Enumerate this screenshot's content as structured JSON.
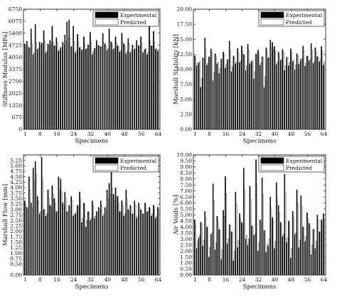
{
  "chart_data": [
    {
      "type": "bar",
      "xlabel": "Specimens",
      "ylabel": "Stiffness Modulus [MPa]",
      "ylim": [
        0,
        6750
      ],
      "yticks": [
        "0",
        "675",
        "1350",
        "2025",
        "2700",
        "3375",
        "4050",
        "4725",
        "5400",
        "6075",
        "6750"
      ],
      "xticks": [
        "1",
        "8",
        "16",
        "24",
        "32",
        "40",
        "48",
        "56",
        "64"
      ],
      "legend_placement": "top-right",
      "series": [
        {
          "name": "Experimental",
          "color": "#000000",
          "values": [
            4800,
            4950,
            4600,
            5650,
            4200,
            5900,
            4500,
            4900,
            4850,
            5550,
            4300,
            4800,
            5000,
            5800,
            4700,
            5150,
            4400,
            4600,
            4900,
            5300,
            6050,
            6150,
            4650,
            5800,
            4300,
            5350,
            4600,
            4450,
            5200,
            4500,
            4750,
            5450,
            4200,
            4550,
            5000,
            4700,
            4650,
            5400,
            4800,
            4450,
            5650,
            4900,
            4500,
            5200,
            4700,
            4350,
            5400,
            4800,
            4250,
            5100,
            4300,
            4750,
            4500,
            5000,
            4700,
            5200,
            4300,
            4500,
            4200,
            6200,
            4700,
            5500,
            4500,
            4400
          ]
        },
        {
          "name": "Predicted",
          "color": "#ffffff",
          "values": [
            4600,
            4700,
            4550,
            4800,
            4300,
            4900,
            4550,
            4700,
            4800,
            4950,
            4400,
            4700,
            4800,
            4900,
            4650,
            4900,
            4450,
            4600,
            4750,
            4950,
            5100,
            5200,
            4600,
            4950,
            4400,
            4900,
            4600,
            4500,
            4800,
            4550,
            4700,
            4900,
            4350,
            4550,
            4750,
            4650,
            4600,
            4850,
            4700,
            4550,
            4950,
            4750,
            4550,
            4850,
            4650,
            4450,
            4900,
            4700,
            4400,
            4800,
            4400,
            4650,
            4550,
            4750,
            4650,
            4850,
            4400,
            4550,
            4350,
            5000,
            4650,
            4900,
            4550,
            4500
          ]
        }
      ]
    },
    {
      "type": "bar",
      "xlabel": "Specimens",
      "ylabel": "Marshall Stability [kN]",
      "ylim": [
        0,
        20
      ],
      "yticks": [
        "0.00",
        "2.50",
        "5.00",
        "7.50",
        "10.00",
        "12.50",
        "15.00",
        "17.50",
        "20.00"
      ],
      "xticks": [
        "1",
        "8",
        "16",
        "24",
        "32",
        "40",
        "48",
        "56",
        "64"
      ],
      "legend_placement": "top-right",
      "series": [
        {
          "name": "Experimental",
          "color": "#000000",
          "values": [
            12.3,
            10.6,
            11.1,
            7.0,
            11.9,
            15.2,
            10.7,
            12.1,
            13.4,
            8.1,
            12.6,
            10.9,
            9.3,
            11.7,
            12.9,
            10.2,
            11.6,
            14.7,
            9.6,
            12.2,
            10.9,
            13.5,
            11.1,
            13.9,
            12.5,
            9.8,
            14.2,
            10.9,
            11.3,
            8.4,
            12.6,
            13.2,
            10.7,
            12.1,
            7.0,
            13.6,
            11.9,
            14.9,
            14.5,
            13.8,
            10.8,
            12.9,
            11.5,
            13.3,
            9.8,
            12.0,
            10.6,
            13.4,
            11.3,
            9.9,
            12.6,
            10.8,
            11.7,
            13.9,
            10.5,
            12.2,
            11.4,
            14.3,
            11.0,
            13.6,
            12.1,
            11.2,
            13.8,
            10.7
          ]
        },
        {
          "name": "Predicted",
          "color": "#ffffff",
          "values": [
            12.0,
            11.0,
            11.3,
            8.5,
            11.8,
            13.5,
            11.0,
            12.0,
            12.8,
            9.5,
            12.2,
            11.2,
            10.2,
            11.7,
            12.5,
            10.8,
            11.6,
            13.2,
            10.4,
            12.0,
            11.2,
            12.8,
            11.4,
            13.0,
            12.2,
            10.6,
            13.1,
            11.3,
            11.5,
            9.6,
            12.3,
            12.7,
            11.1,
            12.0,
            8.8,
            12.9,
            11.8,
            13.5,
            13.3,
            13.0,
            11.2,
            12.5,
            11.6,
            12.8,
            10.6,
            12.0,
            11.1,
            12.8,
            11.5,
            10.7,
            12.3,
            11.2,
            11.8,
            13.0,
            11.0,
            12.1,
            11.6,
            13.2,
            11.3,
            12.9,
            12.0,
            11.5,
            13.0,
            11.2
          ]
        }
      ]
    },
    {
      "type": "bar",
      "xlabel": "Specimens",
      "ylabel": "Marshall Flow [mm]",
      "ylim": [
        0,
        5.5
      ],
      "yticks": [
        "0.00",
        "0.50",
        "0.75",
        "1.00",
        "1.25",
        "1.50",
        "1.75",
        "2.00",
        "2.25",
        "2.50",
        "2.75",
        "3.00",
        "3.25",
        "3.50",
        "3.75",
        "4.00",
        "4.25",
        "4.50",
        "4.75",
        "5.00",
        "5.25"
      ],
      "xticks": [
        "1",
        "8",
        "16",
        "24",
        "32",
        "40",
        "48",
        "56",
        "64"
      ],
      "legend_placement": "top-right",
      "series": [
        {
          "name": "Experimental",
          "color": "#000000",
          "values": [
            3.4,
            3.1,
            4.5,
            3.3,
            4.9,
            5.2,
            3.6,
            2.8,
            5.4,
            3.0,
            2.7,
            3.9,
            3.2,
            4.1,
            3.5,
            2.9,
            4.5,
            4.4,
            3.3,
            3.8,
            2.9,
            3.2,
            3.6,
            2.7,
            2.8,
            3.2,
            3.8,
            2.4,
            3.3,
            2.2,
            2.9,
            2.5,
            3.4,
            2.6,
            2.9,
            3.1,
            3.4,
            2.7,
            3.1,
            3.9,
            4.2,
            4.7,
            3.7,
            4.0,
            3.6,
            2.9,
            3.4,
            2.7,
            3.9,
            3.0,
            3.2,
            2.8,
            3.4,
            2.6,
            3.3,
            3.0,
            2.8,
            3.3,
            2.9,
            3.1,
            2.7,
            3.2,
            2.6,
            3.1
          ]
        },
        {
          "name": "Predicted",
          "color": "#ffffff",
          "values": [
            3.2,
            3.0,
            3.9,
            3.1,
            4.3,
            4.6,
            3.4,
            2.9,
            4.4,
            3.0,
            2.8,
            3.5,
            3.1,
            3.7,
            3.3,
            2.9,
            3.9,
            3.8,
            3.2,
            3.5,
            2.9,
            3.1,
            3.4,
            2.8,
            2.9,
            3.1,
            3.5,
            2.6,
            3.2,
            2.5,
            2.9,
            2.6,
            3.2,
            2.7,
            2.9,
            3.0,
            3.2,
            2.8,
            3.0,
            3.5,
            3.7,
            4.0,
            3.4,
            3.6,
            3.3,
            2.9,
            3.2,
            2.8,
            3.5,
            2.9,
            3.1,
            2.8,
            3.2,
            2.7,
            3.1,
            2.9,
            2.8,
            3.1,
            2.9,
            3.0,
            2.8,
            3.1,
            2.7,
            3.0
          ]
        }
      ]
    },
    {
      "type": "bar",
      "xlabel": "Specimens",
      "ylabel": "Air Voids [%]",
      "ylim": [
        0,
        10
      ],
      "yticks": [
        "0.00",
        "0.50",
        "1.00",
        "1.50",
        "2.00",
        "2.50",
        "3.00",
        "3.50",
        "4.00",
        "4.50",
        "5.00",
        "5.50",
        "6.00",
        "6.50",
        "7.00",
        "7.50",
        "8.00",
        "8.50",
        "9.00",
        "9.50",
        "10.00"
      ],
      "xticks": [
        "1",
        "8",
        "16",
        "24",
        "32",
        "40",
        "48",
        "56",
        "64"
      ],
      "legend_placement": "top-right",
      "series": [
        {
          "name": "Experimental",
          "color": "#000000",
          "values": [
            4.6,
            2.2,
            3.1,
            4.4,
            2.4,
            5.3,
            4.0,
            1.5,
            3.4,
            7.6,
            2.1,
            4.9,
            3.8,
            1.3,
            5.4,
            8.2,
            2.6,
            4.2,
            3.6,
            1.2,
            6.9,
            2.3,
            5.1,
            4.4,
            8.9,
            3.0,
            2.5,
            7.4,
            4.1,
            3.3,
            9.6,
            2.0,
            4.6,
            8.1,
            3.7,
            1.9,
            2.4,
            6.5,
            4.8,
            2.2,
            7.7,
            5.8,
            4.4,
            3.2,
            8.4,
            2.7,
            4.5,
            1.4,
            5.3,
            3.4,
            7.1,
            2.3,
            6.6,
            4.0,
            2.8,
            5.2,
            4.3,
            1.7,
            3.8,
            2.2,
            5.0,
            3.6,
            4.6,
            5.1
          ]
        },
        {
          "name": "Predicted",
          "color": "#ffffff",
          "values": [
            4.3,
            2.8,
            3.3,
            4.2,
            2.9,
            4.8,
            3.9,
            2.3,
            3.5,
            6.2,
            2.7,
            4.5,
            3.7,
            2.1,
            4.9,
            6.8,
            3.0,
            4.1,
            3.6,
            2.0,
            5.9,
            2.9,
            4.7,
            4.2,
            7.1,
            3.3,
            3.0,
            6.3,
            4.0,
            3.4,
            7.6,
            2.7,
            4.4,
            6.7,
            3.7,
            2.6,
            3.0,
            5.6,
            4.5,
            2.8,
            6.4,
            5.2,
            4.2,
            3.4,
            6.9,
            3.1,
            4.3,
            2.2,
            4.8,
            3.5,
            6.0,
            2.9,
            5.7,
            3.9,
            3.2,
            4.7,
            4.1,
            2.5,
            3.8,
            2.8,
            4.6,
            3.6,
            4.4,
            4.7
          ]
        }
      ]
    }
  ]
}
